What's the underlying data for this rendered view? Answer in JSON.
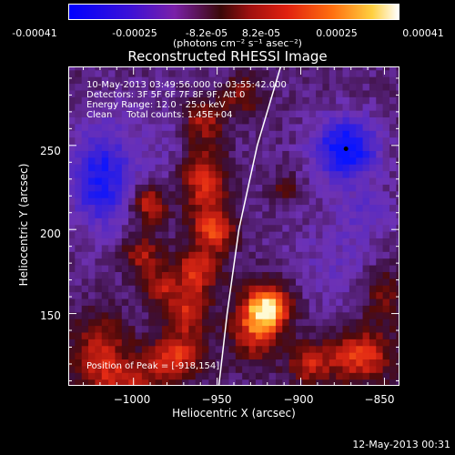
{
  "colorbar": {
    "ticks": [
      "-0.00041",
      "-0.00025",
      "-8.2e-05",
      "8.2e-05",
      "0.00025",
      "0.00041"
    ],
    "units": "(photons cm⁻² s⁻¹ asec⁻²)",
    "colors": [
      "#0000ff",
      "#7a20a8",
      "#a01010",
      "#ff7010",
      "#ffffff"
    ]
  },
  "chart_data": {
    "type": "heatmap",
    "title": "Reconstructed RHESSI Image",
    "xlabel": "Heliocentric X (arcsec)",
    "ylabel": "Heliocentric Y (arcsec)",
    "xlim": [
      -1039,
      -841
    ],
    "ylim": [
      107,
      297
    ],
    "x_ticks": [
      -1000,
      -950,
      -900,
      -850
    ],
    "x_tick_labels": [
      "−1000",
      "−950",
      "−900",
      "−850"
    ],
    "y_ticks": [
      150,
      200,
      250
    ],
    "y_tick_labels": [
      "150",
      "200",
      "250"
    ],
    "value_range": [
      -0.00041,
      0.00041
    ],
    "peak": [
      -918,
      154
    ],
    "min_marker": [
      -873,
      248
    ],
    "limb_curve": [
      [
        -949,
        107
      ],
      [
        -944,
        150
      ],
      [
        -937,
        200
      ],
      [
        -926,
        250
      ],
      [
        -912,
        297
      ]
    ],
    "annotations": {
      "time_range": "10-May-2013 03:49:56.000 to 03:55:42.000",
      "detectors": "Detectors: 3F 5F 6F 7F 8F 9F, Att 0",
      "energy": "Energy Range: 12.0 - 25.0 keV",
      "clean": "Clean     Total counts: 1.45E+04",
      "peak_text": "Position of Peak = [-918,154]"
    }
  },
  "footer": {
    "date": "12-May-2013 00:31"
  }
}
